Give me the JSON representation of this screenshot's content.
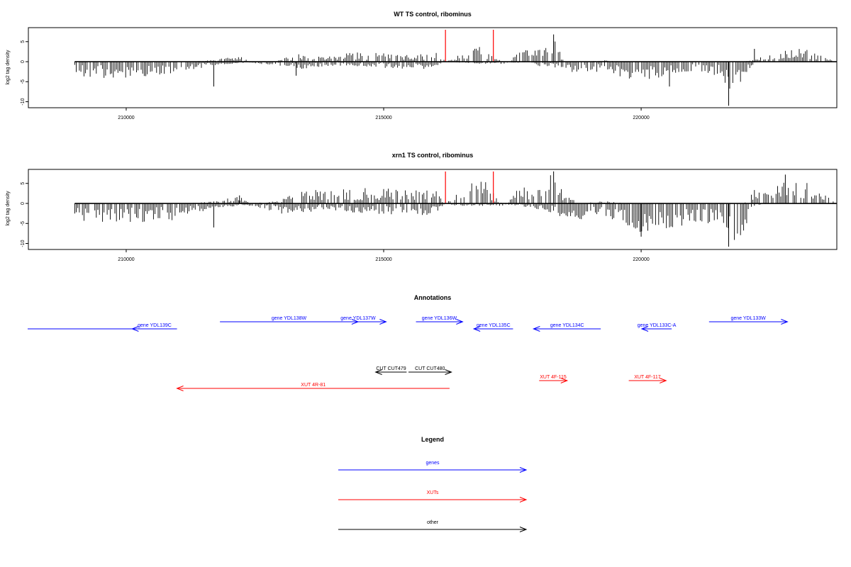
{
  "chart_data": [
    {
      "type": "bar",
      "title": "WT TS control, ribominus",
      "ylabel": "log2 tag density",
      "xlim": [
        208100,
        223800
      ],
      "ylim": [
        -11.5,
        8.5
      ],
      "x_ticks": [
        {
          "value": 210000,
          "label": "210000"
        },
        {
          "value": 215000,
          "label": "215000"
        },
        {
          "value": 220000,
          "label": "220000"
        }
      ],
      "y_ticks": [
        {
          "value": 5,
          "label": "5"
        },
        {
          "value": 0,
          "label": "0"
        },
        {
          "value": -5,
          "label": "-5"
        },
        {
          "value": -10,
          "label": "-10"
        }
      ],
      "highlight_lines": [
        {
          "x": 216200,
          "color": "#ff0000"
        },
        {
          "x": 217130,
          "color": "#ff0000"
        }
      ],
      "profile_x": [
        209000,
        209600,
        210200,
        210500,
        210900,
        211200,
        211700,
        212200,
        212400,
        212900,
        213300,
        213500,
        213800,
        214100,
        214500,
        214900,
        215200,
        215500,
        215800,
        216000,
        216200,
        216400,
        216700,
        216950,
        217100,
        217300,
        217400,
        217600,
        217900,
        218000,
        218300,
        218500,
        218800,
        219300,
        219700,
        220000,
        220500,
        220900,
        221200,
        221500,
        221700,
        221800,
        222000,
        222200,
        222500,
        222800,
        223200,
        223300,
        223800
      ],
      "profile_pos": [
        0,
        0,
        0,
        0,
        0,
        0,
        0.4,
        1.2,
        0,
        0,
        1.8,
        1,
        1.3,
        1.5,
        2,
        1.8,
        1.6,
        1.5,
        1.8,
        2.5,
        0,
        1,
        3.5,
        3,
        1.5,
        0,
        0,
        2.5,
        2.5,
        2.5,
        5.5,
        0,
        0,
        0.3,
        0,
        0,
        0,
        0,
        0,
        0,
        0,
        0,
        0,
        0.5,
        1.5,
        2.5,
        3,
        2.5,
        0
      ],
      "profile_neg": [
        -3,
        -3.5,
        -3.5,
        -3,
        -2.8,
        -2,
        -0.8,
        -0.3,
        -0.3,
        -0.8,
        -1.5,
        -1.5,
        -1,
        -0.8,
        -1,
        -1.2,
        -1.5,
        -1.5,
        -1.5,
        -1,
        0,
        -0.2,
        -0.3,
        -0.5,
        -0.5,
        -0.5,
        -0.5,
        -0.2,
        -0.3,
        -1,
        -1,
        -2.5,
        -2.5,
        -2,
        -3.5,
        -4,
        -3,
        -2.5,
        -2.5,
        -3,
        -6,
        -9.5,
        -4,
        -0.2,
        0,
        0,
        0,
        0,
        0
      ],
      "peak_bars": [
        [
          211700,
          -6.2
        ],
        [
          213300,
          -3.5
        ],
        [
          218300,
          6.8
        ],
        [
          220550,
          -6.2
        ],
        [
          221700,
          -11
        ],
        [
          222200,
          3.2
        ]
      ]
    },
    {
      "type": "bar",
      "title": "xrn1 TS control, ribominus",
      "ylabel": "log2 tag density",
      "xlim": [
        208100,
        223800
      ],
      "ylim": [
        -11.5,
        8.5
      ],
      "x_ticks": [
        {
          "value": 210000,
          "label": "210000"
        },
        {
          "value": 215000,
          "label": "215000"
        },
        {
          "value": 220000,
          "label": "220000"
        }
      ],
      "y_ticks": [
        {
          "value": 5,
          "label": "5"
        },
        {
          "value": 0,
          "label": "0"
        },
        {
          "value": -5,
          "label": "-5"
        },
        {
          "value": -10,
          "label": "-10"
        }
      ],
      "highlight_lines": [
        {
          "x": 216200,
          "color": "#ff0000"
        },
        {
          "x": 217130,
          "color": "#ff0000"
        }
      ],
      "profile_x": [
        209000,
        209600,
        210200,
        210500,
        210900,
        211200,
        211700,
        212200,
        212400,
        212900,
        213300,
        213500,
        213800,
        214100,
        214500,
        214900,
        215200,
        215500,
        215800,
        216000,
        216200,
        216400,
        216700,
        216950,
        217100,
        217300,
        217400,
        217600,
        217900,
        218000,
        218300,
        218500,
        218800,
        219300,
        219700,
        220000,
        220500,
        220900,
        221200,
        221500,
        221700,
        221800,
        222000,
        222200,
        222500,
        222800,
        223200,
        223300,
        223800
      ],
      "profile_pos": [
        0,
        0,
        0,
        0,
        0,
        0,
        0.5,
        1.5,
        0,
        0.5,
        2.5,
        2.8,
        3.2,
        3,
        3,
        3.5,
        2.8,
        3,
        2.5,
        3.5,
        0,
        2,
        5.5,
        5,
        2.5,
        0,
        0,
        4,
        3.5,
        3.5,
        7,
        2,
        0,
        0.5,
        0,
        0,
        0,
        0,
        0,
        0,
        0,
        0,
        0,
        3,
        4,
        4.5,
        5,
        4,
        0
      ],
      "profile_neg": [
        -3.5,
        -4,
        -4.2,
        -3.5,
        -3.5,
        -2.5,
        -1,
        -0.5,
        -0.5,
        -2,
        -2.5,
        -2,
        -1.5,
        -1.5,
        -2,
        -2.5,
        -2.5,
        -2.5,
        -2.5,
        -2,
        0,
        -0.5,
        -0.5,
        -0.5,
        -0.5,
        -0.5,
        -0.5,
        -0.5,
        -1,
        -1.5,
        -2,
        -3.5,
        -3.5,
        -2.5,
        -5,
        -6,
        -5.5,
        -4.5,
        -4,
        -4.5,
        -7,
        -9.5,
        -5.5,
        -0.5,
        0,
        0,
        0,
        0,
        0
      ],
      "peak_bars": [
        [
          211700,
          -6
        ],
        [
          212200,
          2
        ],
        [
          218300,
          8
        ],
        [
          220000,
          -8.3
        ],
        [
          221700,
          -10.8
        ],
        [
          222800,
          7.2
        ]
      ]
    }
  ],
  "annotations": {
    "title": "Annotations",
    "features": [
      {
        "label": "",
        "color": "#0000ff",
        "strand": "none",
        "start": 208100,
        "end": 211200,
        "row": 1
      },
      {
        "label": "gene YDL139C",
        "color": "#0000ff",
        "strand": "-",
        "start": 210900,
        "end": 212100,
        "row": 1
      },
      {
        "label": "gene YDL138W",
        "color": "#0000ff",
        "strand": "+",
        "start": 213250,
        "end": 216950,
        "row": 0
      },
      {
        "label": "gene YDL137W",
        "color": "#0000ff",
        "strand": "+",
        "start": 216200,
        "end": 217700,
        "row": 0
      },
      {
        "label": "gene YDL136W",
        "color": "#0000ff",
        "strand": "+",
        "start": 218500,
        "end": 219750,
        "row": 0
      },
      {
        "label": "gene YDL135C",
        "color": "#0000ff",
        "strand": "-",
        "start": 220050,
        "end": 221100,
        "row": 1
      },
      {
        "label": "gene YDL134C",
        "color": "#0000ff",
        "strand": "-",
        "start": 221650,
        "end": 223450,
        "row": 1
      },
      {
        "label": "gene YDL133C-A",
        "color": "#0000ff",
        "strand": "-",
        "start": 224550,
        "end": 225350,
        "row": 1
      },
      {
        "label": "gene YDL133W",
        "color": "#0000ff",
        "strand": "+",
        "start": 226350,
        "end": 228450,
        "row": 0
      },
      {
        "label": "CUT CUT479",
        "color": "#000000",
        "strand": "-",
        "start": 217420,
        "end": 218250,
        "row": 2
      },
      {
        "label": "CUT CUT480",
        "color": "#000000",
        "strand": "+",
        "start": 218300,
        "end": 219450,
        "row": 2
      },
      {
        "label": "XUT 4R-81",
        "color": "#ff0000",
        "strand": "-",
        "start": 212100,
        "end": 219400,
        "row": 4
      },
      {
        "label": "XUT 4F-115",
        "color": "#ff0000",
        "strand": "+",
        "start": 221800,
        "end": 222550,
        "row": 3
      },
      {
        "label": "XUT 4F-117",
        "color": "#ff0000",
        "strand": "+",
        "start": 224200,
        "end": 225200,
        "row": 3
      }
    ]
  },
  "legend": {
    "title": "Legend",
    "entries": [
      {
        "label": "genes",
        "color": "#0000ff"
      },
      {
        "label": "XUTs",
        "color": "#ff0000"
      },
      {
        "label": "other",
        "color": "#000000"
      }
    ]
  }
}
